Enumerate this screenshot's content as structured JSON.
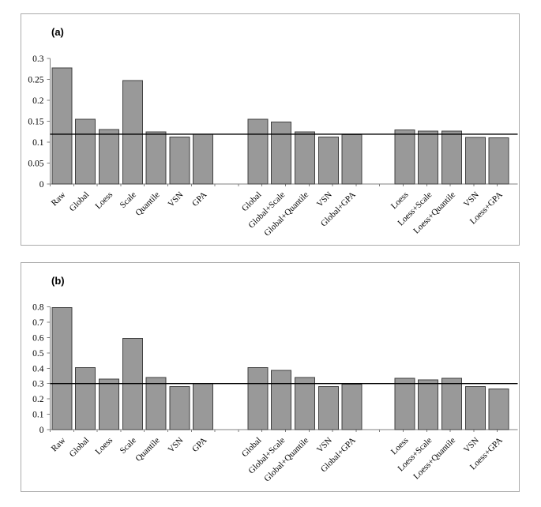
{
  "figure": {
    "description": "Two-panel grouped bar chart figure comparing normalization methods",
    "panel_count": 2
  },
  "colors": {
    "background": "#ffffff",
    "bar_fill": "#999999",
    "bar_stroke": "#404040",
    "axis_line": "#808080",
    "reference_line": "#000000",
    "panel_border": "#ababab",
    "text": "#000000"
  },
  "chart_data": [
    {
      "type": "bar",
      "panel_label": "(a)",
      "title": "",
      "xlabel": "",
      "ylabel": "",
      "ylim": [
        0,
        0.3
      ],
      "yticks": [
        0,
        0.05,
        0.1,
        0.15,
        0.2,
        0.25,
        0.3
      ],
      "ytick_labels": [
        "0",
        "0.05",
        "0.1",
        "0.15",
        "0.2",
        "0.25",
        "0.3"
      ],
      "reference_line": 0.119,
      "grid": false,
      "legend": false,
      "groups": [
        {
          "categories": [
            "Raw",
            "Global",
            "Loess",
            "Scale",
            "Quantile",
            "VSN",
            "GPA"
          ],
          "values": [
            0.277,
            0.155,
            0.13,
            0.247,
            0.125,
            0.112,
            0.119
          ]
        },
        {
          "categories": [
            "Global",
            "Global+Scale",
            "Global+Quantile",
            "VSN",
            "Global+GPA"
          ],
          "values": [
            0.155,
            0.148,
            0.125,
            0.112,
            0.118
          ]
        },
        {
          "categories": [
            "Loess",
            "Loess+Scale",
            "Loess+Quantile",
            "VSN",
            "Loess+GPA"
          ],
          "values": [
            0.129,
            0.126,
            0.126,
            0.111,
            0.11
          ]
        }
      ]
    },
    {
      "type": "bar",
      "panel_label": "(b)",
      "title": "",
      "xlabel": "",
      "ylabel": "",
      "ylim": [
        0,
        0.8
      ],
      "yticks": [
        0,
        0.1,
        0.2,
        0.3,
        0.4,
        0.5,
        0.6,
        0.7,
        0.8
      ],
      "ytick_labels": [
        "0",
        "0.1",
        "0.2",
        "0.3",
        "0.4",
        "0.5",
        "0.6",
        "0.7",
        "0.8"
      ],
      "reference_line": 0.3,
      "grid": false,
      "legend": false,
      "groups": [
        {
          "categories": [
            "Raw",
            "Global",
            "Loess",
            "Scale",
            "Quantile",
            "VSN",
            "GPA"
          ],
          "values": [
            0.795,
            0.405,
            0.33,
            0.595,
            0.34,
            0.28,
            0.3
          ]
        },
        {
          "categories": [
            "Global",
            "Global+Scale",
            "Global+Quantile",
            "VSN",
            "Global+GPA"
          ],
          "values": [
            0.405,
            0.385,
            0.34,
            0.28,
            0.295
          ]
        },
        {
          "categories": [
            "Loess",
            "Loess+Scale",
            "Loess+Quantile",
            "VSN",
            "Loess+GPA"
          ],
          "values": [
            0.335,
            0.325,
            0.335,
            0.28,
            0.265
          ]
        }
      ]
    }
  ]
}
